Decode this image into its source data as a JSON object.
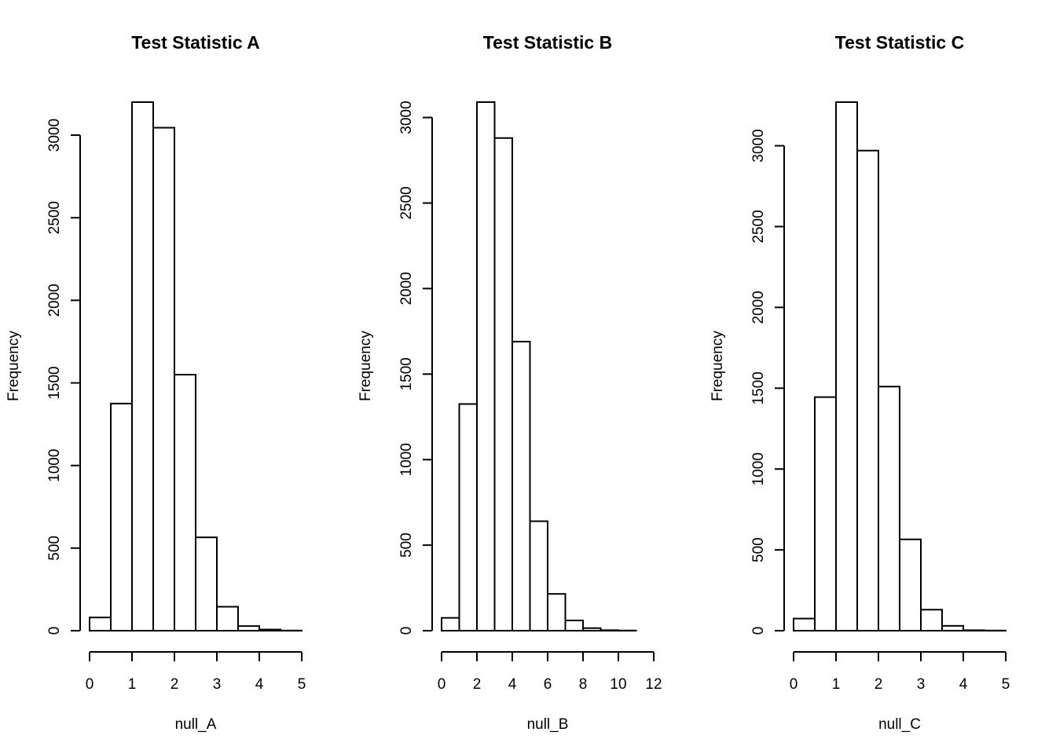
{
  "chart_data": [
    {
      "type": "bar",
      "title": "Test Statistic A",
      "xlabel": "null_A",
      "ylabel": "Frequency",
      "bin_edges": [
        0,
        0.5,
        1,
        1.5,
        2,
        2.5,
        3,
        3.5,
        4,
        4.5,
        5
      ],
      "values": [
        80,
        1375,
        3200,
        3045,
        1550,
        565,
        145,
        28,
        7,
        1
      ],
      "xlim": [
        0,
        5
      ],
      "ylim": [
        0,
        3200
      ],
      "xticks": [
        0,
        1,
        2,
        3,
        4,
        5
      ],
      "xtick_labels": [
        "0",
        "1",
        "2",
        "3",
        "4",
        "5"
      ],
      "yticks": [
        0,
        500,
        1000,
        1500,
        2000,
        2500,
        3000
      ],
      "ytick_labels": [
        "0",
        "500",
        "1000",
        "1500",
        "2000",
        "2500",
        "3000"
      ]
    },
    {
      "type": "bar",
      "title": "Test Statistic B",
      "xlabel": "null_B",
      "ylabel": "Frequency",
      "bin_edges": [
        0,
        1,
        2,
        3,
        4,
        5,
        6,
        7,
        8,
        9,
        10,
        11,
        12
      ],
      "values": [
        75,
        1325,
        3090,
        2880,
        1690,
        640,
        215,
        60,
        15,
        3,
        1,
        0
      ],
      "xlim": [
        0,
        12
      ],
      "ylim": [
        0,
        3090
      ],
      "xticks": [
        0,
        2,
        4,
        6,
        8,
        10,
        12
      ],
      "xtick_labels": [
        "0",
        "2",
        "4",
        "6",
        "8",
        "10",
        "12"
      ],
      "yticks": [
        0,
        500,
        1000,
        1500,
        2000,
        2500,
        3000
      ],
      "ytick_labels": [
        "0",
        "500",
        "1000",
        "1500",
        "2000",
        "2500",
        "3000"
      ]
    },
    {
      "type": "bar",
      "title": "Test Statistic C",
      "xlabel": "null_C",
      "ylabel": "Frequency",
      "bin_edges": [
        0,
        0.5,
        1,
        1.5,
        2,
        2.5,
        3,
        3.5,
        4,
        4.5,
        5
      ],
      "values": [
        75,
        1445,
        3270,
        2970,
        1510,
        565,
        130,
        30,
        3,
        1
      ],
      "xlim": [
        0,
        5
      ],
      "ylim": [
        0,
        3270
      ],
      "xticks": [
        0,
        1,
        2,
        3,
        4,
        5
      ],
      "xtick_labels": [
        "0",
        "1",
        "2",
        "3",
        "4",
        "5"
      ],
      "yticks": [
        0,
        500,
        1000,
        1500,
        2000,
        2500,
        3000
      ],
      "ytick_labels": [
        "0",
        "500",
        "1000",
        "1500",
        "2000",
        "2500",
        "3000"
      ]
    }
  ]
}
